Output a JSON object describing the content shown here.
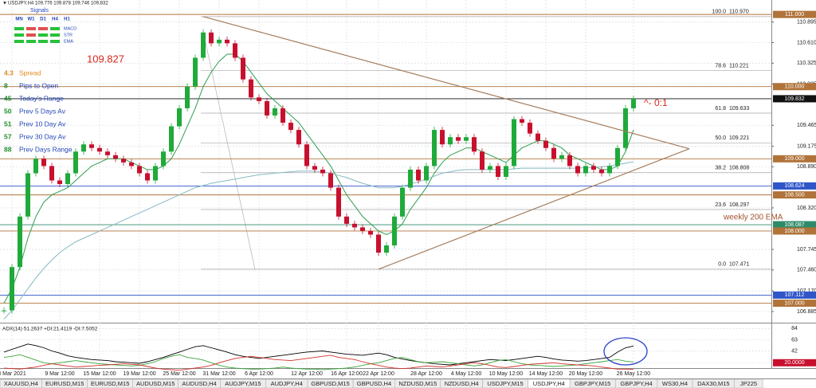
{
  "header": {
    "symbol_line": "USDJPY,H4  109.776 109.878 109.746 109.832",
    "signals_title": "Signals"
  },
  "signals": {
    "columns": [
      "MN",
      "W1",
      "D1",
      "H4",
      "H1"
    ],
    "rows": [
      "MACD",
      "STR",
      "EMA"
    ]
  },
  "info": {
    "price": 109.827,
    "items": [
      {
        "value": 4.3,
        "label": "Spread"
      },
      {
        "value": 8,
        "label": "Pips to Open"
      },
      {
        "value": 45,
        "label": "Today's Range"
      },
      {
        "value": 50,
        "label": "Prev 5 Days Av"
      },
      {
        "value": 51,
        "label": "Prev 10 Day Av"
      },
      {
        "value": 57,
        "label": "Prev 30 Day Av"
      },
      {
        "value": 88,
        "label": "Prev Days Range"
      }
    ]
  },
  "chart_data": [
    {
      "type": "candlestick",
      "title": "USDJPY,H4",
      "up_color": "#1faa3a",
      "down_color": "#c8102e",
      "categories": [
        null,
        "3 Mar 2021",
        null,
        null,
        null,
        null,
        null,
        "9 Mar 12:00",
        null,
        null,
        null,
        null,
        "15 Mar 12:00",
        null,
        null,
        null,
        null,
        "19 Mar 12:00",
        null,
        null,
        null,
        null,
        "25 Mar 12:00",
        null,
        null,
        null,
        null,
        "31 Mar 12:00",
        null,
        null,
        null,
        null,
        "6 Apr 12:00",
        null,
        null,
        null,
        null,
        null,
        "12 Apr 12:00",
        null,
        null,
        null,
        null,
        "16 Apr 12:00",
        null,
        null,
        null,
        "22 Apr 12:00",
        null,
        null,
        null,
        null,
        null,
        "28 Apr 12:00",
        null,
        null,
        null,
        null,
        "4 May 12:00",
        null,
        null,
        null,
        null,
        "10 May 12:00",
        null,
        null,
        null,
        null,
        "14 May 12:00",
        null,
        null,
        null,
        null,
        "20 May 12:00",
        null,
        null,
        null,
        null,
        null,
        "26 May 12:00"
      ],
      "values": [
        106.9,
        107.5,
        108.2,
        108.8,
        109.0,
        108.9,
        108.7,
        108.65,
        108.8,
        109.1,
        109.2,
        109.15,
        109.1,
        109.05,
        109.0,
        108.95,
        108.9,
        108.8,
        108.7,
        108.9,
        109.1,
        109.45,
        109.7,
        110.0,
        110.4,
        110.75,
        110.6,
        110.65,
        110.6,
        110.4,
        110.1,
        109.85,
        109.8,
        109.6,
        109.7,
        109.5,
        109.4,
        109.2,
        108.9,
        108.85,
        108.8,
        108.6,
        108.2,
        108.1,
        108.05,
        108.0,
        107.95,
        107.7,
        107.8,
        108.2,
        108.6,
        108.85,
        108.7,
        108.9,
        109.4,
        109.2,
        109.3,
        109.25,
        109.3,
        109.1,
        108.85,
        108.9,
        108.75,
        108.9,
        109.55,
        109.5,
        109.35,
        109.25,
        109.15,
        109.0,
        109.05,
        108.9,
        108.8,
        108.9,
        108.85,
        108.8,
        108.9,
        109.15,
        109.7,
        109.832
      ],
      "lines": [
        {
          "color": "#2e9e4f",
          "values": [
            107.0,
            107.2,
            107.5,
            107.9,
            108.2,
            108.4,
            108.5,
            108.55,
            108.6,
            108.7,
            108.8,
            108.9,
            108.95,
            109.0,
            109.0,
            109.0,
            108.95,
            108.9,
            108.85,
            108.85,
            108.9,
            109.0,
            109.2,
            109.45,
            109.7,
            110.0,
            110.2,
            110.35,
            110.45,
            110.45,
            110.35,
            110.2,
            110.05,
            109.9,
            109.8,
            109.7,
            109.6,
            109.5,
            109.35,
            109.2,
            109.05,
            108.9,
            108.7,
            108.5,
            108.35,
            108.2,
            108.1,
            108.0,
            107.95,
            108.0,
            108.1,
            108.3,
            108.45,
            108.6,
            108.8,
            108.95,
            109.05,
            109.1,
            109.15,
            109.15,
            109.1,
            109.05,
            109.0,
            108.95,
            109.05,
            109.15,
            109.2,
            109.25,
            109.25,
            109.2,
            109.15,
            109.05,
            109.0,
            108.95,
            108.9,
            108.85,
            108.85,
            108.9,
            109.1,
            109.4
          ]
        },
        {
          "color": "#86b9c4",
          "values": [
            106.78,
            106.9,
            107.05,
            107.2,
            107.35,
            107.48,
            107.6,
            107.7,
            107.78,
            107.85,
            107.9,
            107.95,
            108.0,
            108.05,
            108.1,
            108.15,
            108.2,
            108.25,
            108.3,
            108.35,
            108.4,
            108.45,
            108.5,
            108.55,
            108.6,
            108.63,
            108.66,
            108.68,
            108.7,
            108.72,
            108.74,
            108.76,
            108.78,
            108.79,
            108.8,
            108.81,
            108.82,
            108.83,
            108.83,
            108.83,
            108.82,
            108.8,
            108.77,
            108.74,
            108.7,
            108.66,
            108.63,
            108.6,
            108.6,
            108.6,
            108.62,
            108.65,
            108.68,
            108.72,
            108.76,
            108.8,
            108.82,
            108.84,
            108.85,
            108.85,
            108.85,
            108.85,
            108.85,
            108.85,
            108.86,
            108.87,
            108.87,
            108.87,
            108.87,
            108.87,
            108.87,
            108.87,
            108.87,
            108.88,
            108.88,
            108.89,
            108.9,
            108.92,
            108.94,
            108.96
          ]
        }
      ],
      "ylim": [
        106.73,
        111.2
      ],
      "yticks": [
        110.895,
        {
          "value": 110.61,
          "label": "110.610"
        },
        110.325,
        110.035,
        109.465,
        109.175,
        {
          "value": 108.89,
          "label": "108.890"
        },
        {
          "value": 108.32,
          "label": "108.320"
        },
        107.745,
        {
          "value": 107.46,
          "label": "107.460"
        },
        {
          "value": 107.17,
          "label": "107.170"
        },
        106.885
      ],
      "grid": true,
      "levels": [
        {
          "price": {
            "value": 111,
            "label": "111.000"
          },
          "color": "#b0733a"
        },
        {
          "price": {
            "value": 110,
            "label": "110.000"
          },
          "color": "#b0733a"
        },
        {
          "price": 109.832,
          "color": "#111111"
        },
        {
          "price": {
            "value": 109,
            "label": "109.000"
          },
          "color": "#b0733a"
        },
        {
          "price": 108.624,
          "color": "#2f55c9"
        },
        {
          "price": {
            "value": 108.5,
            "label": "108.500"
          },
          "color": "#b0733a"
        },
        {
          "price": 108.087,
          "color": "#2e8b6a"
        },
        {
          "price": {
            "value": 108,
            "label": "108.000"
          },
          "color": "#b0733a"
        },
        {
          "price": 107.112,
          "color": "#2f55c9"
        },
        {
          "price": {
            "value": 107,
            "label": "107.000"
          },
          "color": "#b0733a"
        }
      ],
      "fibonacci": [
        {
          "level": {
            "value": 100,
            "label": "100.0"
          },
          "price": {
            "value": 110.97,
            "label": "110.970"
          }
        },
        {
          "level": 78.6,
          "price": 110.221
        },
        {
          "level": 61.8,
          "price": 109.633
        },
        {
          "level": {
            "value": 50,
            "label": "50.0"
          },
          "price": 109.221
        },
        {
          "level": 38.2,
          "price": 108.808
        },
        {
          "level": 23.6,
          "price": 108.297
        },
        {
          "level": {
            "value": 0,
            "label": "0.0"
          },
          "price": 107.471
        }
      ],
      "trendlines": [
        {
          "color": "#a57c5b",
          "x": [
            25,
            86
          ],
          "y": [
            110.97,
            109.14
          ]
        },
        {
          "color": "#a57c5b",
          "x": [
            47,
            86
          ],
          "y": [
            107.47,
            109.14
          ]
        }
      ],
      "annotations": [
        {
          "text": "^- 0:1",
          "color": "#d9281e"
        },
        {
          "text": "weekly 200 EMA",
          "color": "#a0522d"
        }
      ]
    },
    {
      "type": "line",
      "title": "ADX(14) 51.2637 +DI:21.4119 -DI:7.5052",
      "series": [
        {
          "color": "#000000",
          "values": [
            40,
            45,
            50,
            55,
            52,
            48,
            42,
            38,
            33,
            30,
            28,
            26,
            25,
            24,
            22,
            21,
            20,
            19,
            22,
            26,
            30,
            35,
            40,
            45,
            50,
            52,
            48,
            44,
            40,
            35,
            32,
            30,
            28,
            30,
            32,
            34,
            36,
            38,
            40,
            41,
            42,
            40,
            38,
            36,
            35,
            34,
            36,
            38,
            35,
            30,
            27,
            24,
            22,
            20,
            18,
            17,
            16,
            18,
            20,
            22,
            24,
            26,
            25,
            24,
            26,
            28,
            30,
            32,
            30,
            27,
            25,
            24,
            23,
            24,
            26,
            28,
            30,
            40,
            48,
            51.2637
          ]
        },
        {
          "color": "#3aa63a",
          "values": [
            30,
            32,
            35,
            30,
            25,
            20,
            18,
            20,
            22,
            24,
            22,
            20,
            18,
            17,
            16,
            15,
            14,
            15,
            18,
            22,
            28,
            32,
            35,
            30,
            28,
            25,
            20,
            15,
            12,
            10,
            9,
            8,
            8,
            9,
            10,
            12,
            10,
            9,
            8,
            8,
            7,
            8,
            9,
            10,
            12,
            15,
            18,
            20,
            24,
            28,
            30,
            26,
            22,
            20,
            21,
            22,
            20,
            18,
            16,
            14,
            16,
            20,
            24,
            26,
            22,
            18,
            16,
            15,
            14,
            13,
            14,
            15,
            16,
            18,
            20,
            22,
            24,
            26,
            23,
            21.4119
          ]
        },
        {
          "color": "#d2302a",
          "values": [
            10,
            9,
            8,
            10,
            12,
            15,
            18,
            16,
            14,
            12,
            13,
            14,
            15,
            16,
            17,
            18,
            17,
            16,
            13,
            10,
            8,
            7,
            6,
            8,
            10,
            12,
            15,
            20,
            24,
            28,
            30,
            32,
            30,
            28,
            26,
            25,
            24,
            26,
            28,
            30,
            32,
            34,
            30,
            28,
            26,
            22,
            18,
            15,
            12,
            10,
            9,
            10,
            12,
            14,
            13,
            12,
            14,
            16,
            18,
            20,
            18,
            15,
            12,
            11,
            13,
            15,
            17,
            18,
            19,
            20,
            18,
            17,
            16,
            15,
            14,
            12,
            10,
            8,
            8,
            7.5052
          ]
        }
      ],
      "ylim": [
        10,
        92
      ],
      "yticks": [
        84,
        63,
        42,
        {
          "value": 20,
          "label": "20.0000"
        }
      ]
    }
  ],
  "tabs": {
    "items": [
      "XAUUSD,H4",
      "EURUSD,M15",
      "EURUSD,M15",
      "AUDUSD,M15",
      "AUDUSD,H4",
      "AUDJPY,M15",
      "AUDJPY,H4",
      "GBPUSD,M15",
      "GBPUSD,H4",
      "NZDUSD,M15",
      "NZDUSD,H4",
      "USDJPY,M15",
      "USDJPY,H4",
      "GBPJPY,M15",
      "GBPJPY,H4",
      "WS30,H4",
      "DAX30,M15",
      "JP225"
    ],
    "active": 12
  }
}
